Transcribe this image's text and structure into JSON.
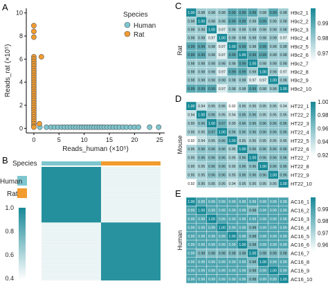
{
  "colors": {
    "human": "#7ec6cf",
    "rat": "#f29b2e",
    "heat_high": "#1a8a98",
    "heat_low": "#ffffff",
    "scatter_edge": "#555555"
  },
  "chart_data": [
    {
      "panel": "A",
      "type": "scatter",
      "xlabel": "Reads_human (×10⁵)",
      "ylabel": "Reads_rat (×10⁵)",
      "xticks": [
        "0",
        "5",
        "10",
        "15",
        "20",
        "25"
      ],
      "yticks": [
        "0",
        "2",
        "4",
        "6",
        "8",
        "10"
      ],
      "xlim": [
        -1.5,
        26
      ],
      "ylim": [
        -0.4,
        10.4
      ],
      "legend": {
        "title": "Species",
        "entries": [
          "Human",
          "Rat"
        ],
        "position": "top-right"
      },
      "series": [
        {
          "name": "Human",
          "points": [
            [
              1.2,
              0.1
            ],
            [
              2.5,
              0.1
            ],
            [
              3.4,
              0.1
            ],
            [
              4.1,
              0.1
            ],
            [
              4.8,
              0.1
            ],
            [
              5.5,
              0.1
            ],
            [
              6.1,
              0.1
            ],
            [
              6.7,
              0.1
            ],
            [
              7.3,
              0.1
            ],
            [
              7.9,
              0.1
            ],
            [
              8.4,
              0.1
            ],
            [
              9.0,
              0.1
            ],
            [
              9.5,
              0.1
            ],
            [
              10.0,
              0.1
            ],
            [
              10.5,
              0.1
            ],
            [
              11.0,
              0.1
            ],
            [
              11.5,
              0.1
            ],
            [
              12.0,
              0.1
            ],
            [
              12.5,
              0.1
            ],
            [
              13.0,
              0.1
            ],
            [
              13.5,
              0.1
            ],
            [
              14.0,
              0.1
            ],
            [
              14.6,
              0.1
            ],
            [
              15.2,
              0.1
            ],
            [
              15.8,
              0.1
            ],
            [
              16.4,
              0.1
            ],
            [
              17.0,
              0.1
            ],
            [
              17.7,
              0.1
            ],
            [
              18.4,
              0.1
            ],
            [
              19.2,
              0.1
            ],
            [
              20.0,
              0.1
            ],
            [
              20.8,
              0.1
            ],
            [
              23.0,
              0.1
            ],
            [
              24.8,
              0.1
            ]
          ]
        },
        {
          "name": "Rat",
          "points": [
            [
              0,
              8.9
            ],
            [
              0,
              8.4
            ],
            [
              0,
              7.9
            ],
            [
              0,
              6.2
            ],
            [
              0,
              6.0
            ],
            [
              0,
              5.8
            ],
            [
              0,
              5.6
            ],
            [
              0,
              5.4
            ],
            [
              0,
              5.2
            ],
            [
              0,
              5.0
            ],
            [
              0,
              4.8
            ],
            [
              0,
              4.6
            ],
            [
              0,
              4.4
            ],
            [
              0,
              4.2
            ],
            [
              0,
              4.0
            ],
            [
              0,
              3.8
            ],
            [
              0,
              3.6
            ],
            [
              0,
              3.4
            ],
            [
              0,
              3.2
            ],
            [
              0,
              3.0
            ],
            [
              0,
              2.8
            ],
            [
              0,
              2.6
            ],
            [
              0,
              2.4
            ],
            [
              0,
              2.2
            ],
            [
              0,
              2.0
            ],
            [
              0,
              1.8
            ],
            [
              0,
              1.6
            ],
            [
              0,
              1.4
            ],
            [
              0,
              1.2
            ],
            [
              0,
              1.0
            ],
            [
              0,
              0.8
            ],
            [
              0,
              0.6
            ],
            [
              0,
              0.4
            ],
            [
              0,
              0.2
            ],
            [
              0,
              0.1
            ],
            [
              1.5,
              6.2
            ],
            [
              1.1,
              0.4
            ]
          ]
        }
      ]
    },
    {
      "panel": "B",
      "type": "heatmap",
      "annotation_label": "Species",
      "legend": {
        "entries": [
          "Human",
          "Rat"
        ]
      },
      "colorbar": {
        "ticks": [
          "1.0",
          "0.8",
          "0.6",
          "0.4"
        ],
        "min": 0.4,
        "max": 1.0
      },
      "block_labels_top": [
        "Human",
        "Rat"
      ],
      "structure": "two diagonal blocks of high correlation (~1.0), off-diagonal ~0.4"
    },
    {
      "panel": "C",
      "type": "heatmap",
      "ylabel": "Rat",
      "row_labels": [
        "H9c2_1",
        "H9c2_2",
        "H9c2_3",
        "H9c2_4",
        "H9c2_5",
        "H9c2_6",
        "H9c2_7",
        "H9c2_8",
        "H9c2_9",
        "H9c2_10"
      ],
      "colorbar": {
        "ticks": [
          "0.99",
          "0.98",
          "0.97"
        ],
        "min": 0.965,
        "max": 1.0
      },
      "values": [
        [
          1.0,
          0.98,
          0.98,
          0.98,
          0.99,
          0.99,
          0.99,
          0.98,
          0.99,
          0.98
        ],
        [
          0.98,
          1.0,
          0.98,
          0.98,
          0.99,
          0.99,
          0.98,
          0.99,
          0.98,
          0.98
        ],
        [
          0.98,
          0.98,
          1.0,
          0.97,
          0.98,
          0.98,
          0.98,
          0.98,
          0.98,
          0.98
        ],
        [
          0.98,
          0.98,
          0.97,
          1.0,
          0.98,
          0.98,
          0.98,
          0.98,
          0.98,
          0.97
        ],
        [
          0.99,
          0.99,
          0.98,
          0.97,
          1.0,
          0.99,
          0.98,
          0.99,
          0.98,
          0.98
        ],
        [
          0.99,
          0.99,
          0.98,
          0.97,
          0.99,
          1.0,
          0.99,
          0.99,
          0.98,
          0.98
        ],
        [
          0.98,
          0.98,
          0.98,
          0.98,
          0.98,
          0.99,
          1.0,
          0.98,
          0.98,
          0.98
        ],
        [
          0.98,
          0.98,
          0.98,
          0.97,
          0.99,
          0.99,
          0.98,
          1.0,
          0.98,
          0.97
        ],
        [
          0.98,
          0.98,
          0.98,
          0.98,
          0.98,
          0.98,
          0.97,
          0.97,
          1.0,
          0.98
        ],
        [
          0.99,
          0.99,
          0.99,
          0.97,
          0.98,
          0.98,
          0.99,
          0.98,
          0.98,
          1.0
        ]
      ]
    },
    {
      "panel": "D",
      "type": "heatmap",
      "ylabel": "Mouse",
      "row_labels": [
        "HT22_1",
        "HT22_2",
        "HT22_3",
        "HT22_4",
        "HT22_5",
        "HT22_6",
        "HT22_7",
        "HT22_8",
        "HT22_9",
        "HT22_10"
      ],
      "colorbar": {
        "ticks": [
          "1.00",
          "0.98",
          "0.96",
          "0.94",
          "0.92"
        ],
        "min": 0.92,
        "max": 1.0
      },
      "values": [
        [
          1.0,
          0.94,
          0.95,
          0.95,
          0.92,
          0.95,
          0.95,
          0.95,
          0.95,
          0.94
        ],
        [
          0.94,
          1.0,
          0.96,
          0.95,
          0.94,
          0.96,
          0.96,
          0.95,
          0.95,
          0.95
        ],
        [
          0.95,
          0.96,
          1.0,
          0.97,
          0.95,
          0.96,
          0.96,
          0.96,
          0.96,
          0.96
        ],
        [
          0.95,
          0.95,
          0.97,
          1.0,
          0.96,
          0.96,
          0.96,
          0.96,
          0.96,
          0.96
        ],
        [
          0.92,
          0.94,
          0.95,
          0.96,
          1.0,
          0.95,
          0.95,
          0.95,
          0.95,
          0.95
        ],
        [
          0.95,
          0.96,
          0.96,
          0.96,
          0.95,
          1.0,
          0.96,
          0.96,
          0.96,
          0.96
        ],
        [
          0.95,
          0.96,
          0.96,
          0.96,
          0.95,
          0.96,
          1.0,
          0.96,
          0.96,
          0.96
        ],
        [
          0.95,
          0.95,
          0.96,
          0.96,
          0.95,
          0.96,
          0.96,
          1.0,
          0.96,
          0.96
        ],
        [
          0.95,
          0.95,
          0.96,
          0.96,
          0.95,
          0.96,
          0.96,
          0.96,
          1.0,
          0.96
        ],
        [
          0.92,
          0.95,
          0.95,
          0.95,
          0.94,
          0.95,
          0.95,
          0.95,
          0.95,
          1.0
        ]
      ]
    },
    {
      "panel": "E",
      "type": "heatmap",
      "ylabel": "Human",
      "row_labels": [
        "AC16_1",
        "AC16_2",
        "AC16_3",
        "AC16_4",
        "AC16_5",
        "AC16_6",
        "AC16_7",
        "AC16_8",
        "AC16_9",
        "AC16_10"
      ],
      "colorbar": {
        "ticks": [
          "0.99",
          "0.98",
          "0.97",
          "0.96"
        ],
        "min": 0.955,
        "max": 1.0
      },
      "values": [
        [
          1.0,
          0.99,
          0.99,
          0.99,
          0.99,
          0.99,
          0.99,
          0.99,
          0.99,
          0.99
        ],
        [
          0.99,
          1.0,
          0.99,
          0.99,
          0.99,
          0.99,
          0.98,
          0.99,
          0.99,
          0.99
        ],
        [
          0.99,
          0.99,
          1.0,
          0.99,
          0.99,
          0.99,
          0.99,
          0.99,
          0.99,
          0.99
        ],
        [
          0.99,
          0.99,
          0.99,
          1.0,
          0.99,
          0.99,
          0.98,
          0.99,
          0.99,
          0.99
        ],
        [
          0.99,
          0.99,
          0.99,
          0.99,
          1.0,
          0.99,
          0.98,
          0.99,
          0.99,
          0.99
        ],
        [
          0.99,
          0.99,
          0.99,
          0.99,
          0.99,
          1.0,
          0.98,
          0.99,
          0.99,
          0.99
        ],
        [
          0.99,
          0.98,
          0.98,
          0.98,
          0.98,
          0.98,
          1.0,
          0.98,
          0.98,
          0.98
        ],
        [
          0.99,
          0.99,
          0.99,
          0.99,
          0.99,
          0.99,
          0.98,
          1.0,
          0.99,
          0.99
        ],
        [
          0.99,
          0.99,
          0.99,
          0.99,
          0.99,
          0.99,
          0.98,
          0.99,
          1.0,
          0.99
        ],
        [
          0.99,
          0.99,
          0.99,
          0.99,
          0.99,
          0.99,
          0.98,
          0.99,
          0.99,
          1.0
        ]
      ]
    }
  ]
}
